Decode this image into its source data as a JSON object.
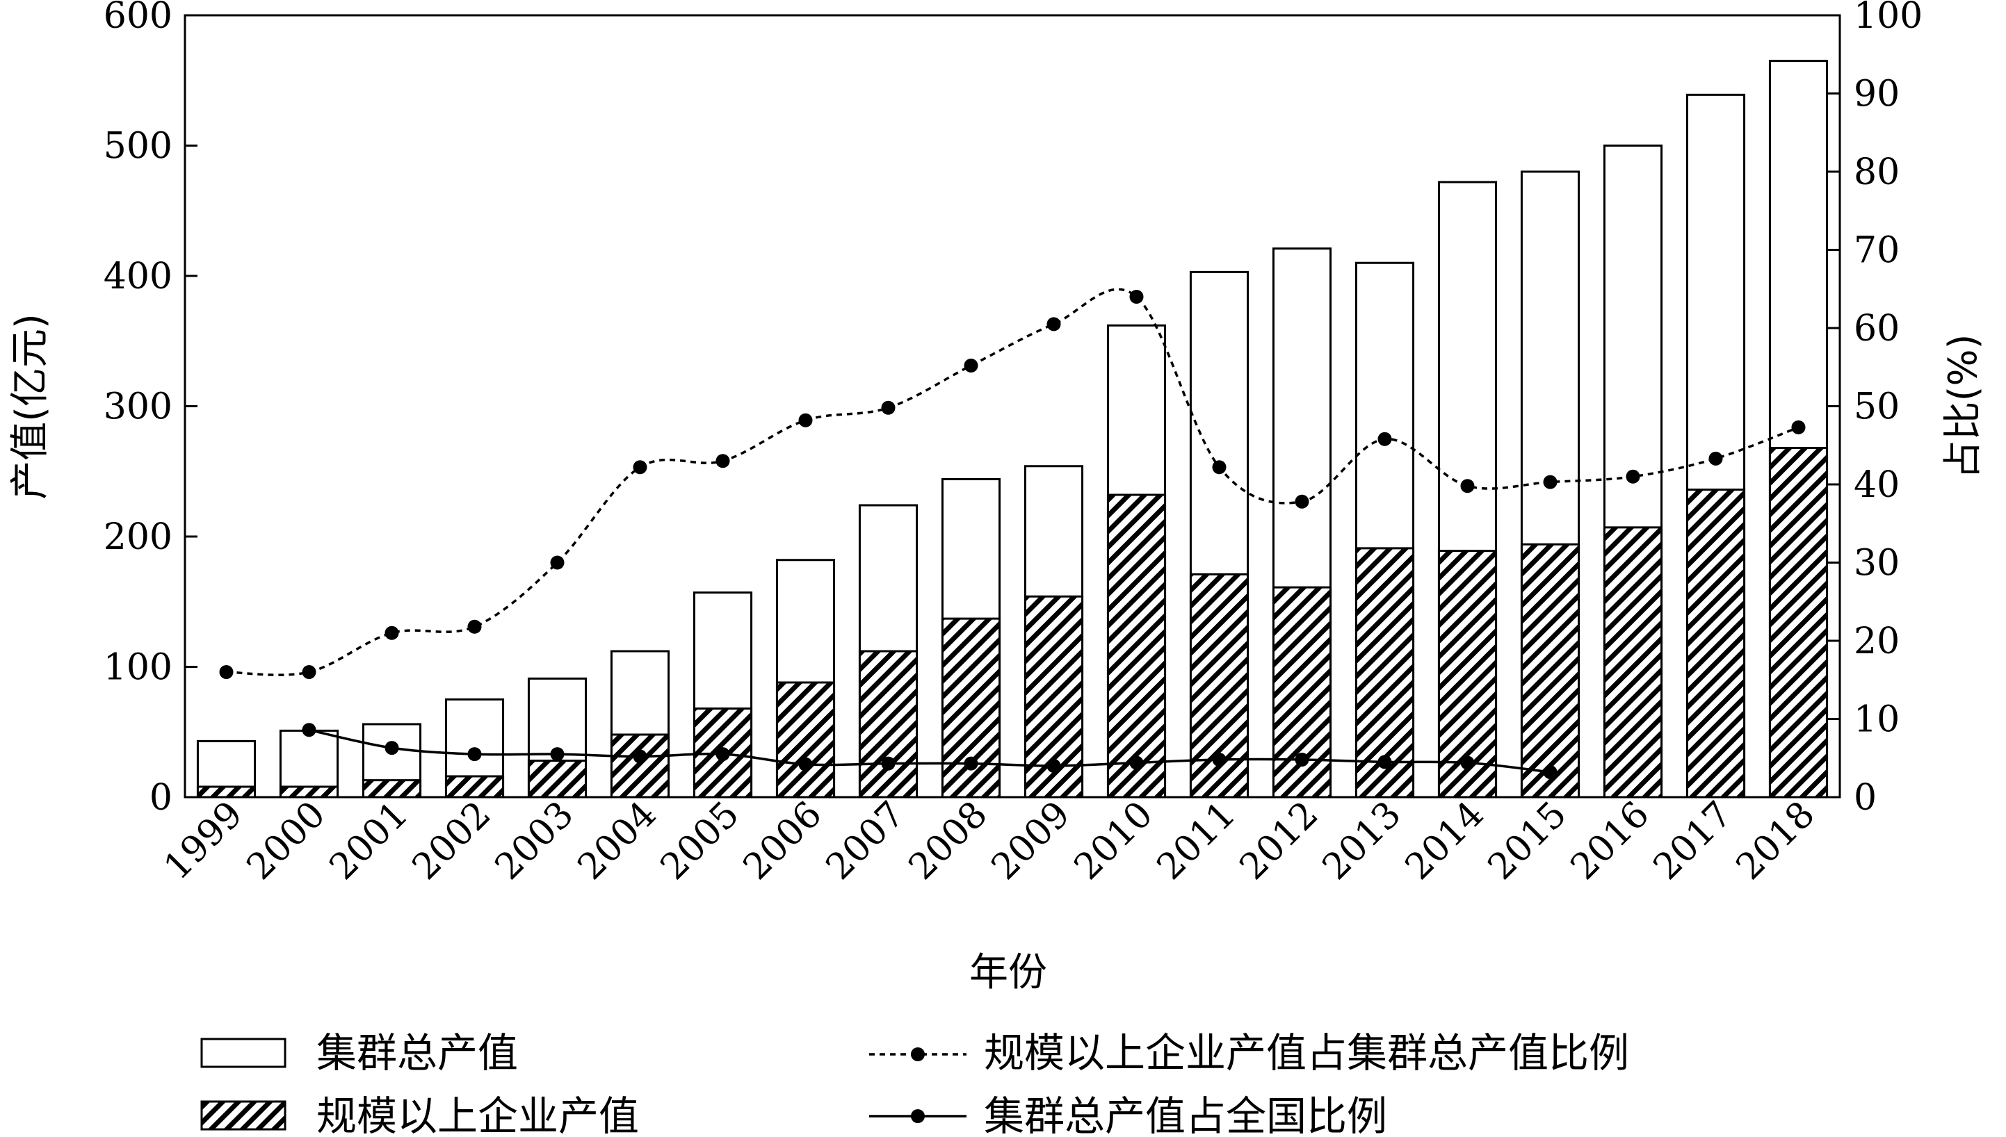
{
  "chart_data": {
    "type": "bar",
    "categories": [
      "1999",
      "2000",
      "2001",
      "2002",
      "2003",
      "2004",
      "2005",
      "2006",
      "2007",
      "2008",
      "2009",
      "2010",
      "2011",
      "2012",
      "2013",
      "2014",
      "2015",
      "2016",
      "2017",
      "2018"
    ],
    "series": [
      {
        "name": "集群总产值",
        "type": "bar",
        "style": "hollow",
        "axis": "left",
        "values": [
          43,
          51,
          56,
          75,
          91,
          112,
          157,
          182,
          224,
          244,
          254,
          362,
          403,
          421,
          410,
          472,
          480,
          500,
          539,
          565
        ]
      },
      {
        "name": "规模以上企业产值",
        "type": "bar",
        "style": "hatched",
        "axis": "left",
        "values": [
          8,
          8,
          13,
          16,
          28,
          48,
          68,
          88,
          112,
          137,
          154,
          232,
          171,
          161,
          191,
          189,
          194,
          207,
          236,
          268
        ]
      },
      {
        "name": "规模以上企业产值占集群总产值比例",
        "type": "line",
        "style": "dotted",
        "axis": "right",
        "values": [
          16,
          16,
          21,
          21.8,
          30,
          42.2,
          43,
          48.2,
          49.8,
          55.2,
          60.5,
          64,
          42.2,
          37.8,
          45.8,
          39.8,
          40.3,
          41,
          43.3,
          47.3
        ]
      },
      {
        "name": "集群总产值占全国比例",
        "type": "line",
        "style": "solid",
        "axis": "right",
        "values": [
          null,
          8.6,
          6.3,
          5.5,
          5.5,
          5.2,
          5.5,
          4.2,
          4.3,
          4.3,
          4.0,
          4.4,
          4.8,
          4.8,
          4.5,
          4.4,
          3.2,
          null,
          null,
          null
        ]
      }
    ],
    "xlabel": "年份",
    "ylabel": "产值(亿元)",
    "ylabel_right": "占比(%)",
    "ylim": [
      0,
      600
    ],
    "ylim_right": [
      0,
      100
    ],
    "yticks": [
      0,
      100,
      200,
      300,
      400,
      500,
      600
    ],
    "yticks_right": [
      0,
      10,
      20,
      30,
      40,
      50,
      60,
      70,
      80,
      90,
      100
    ],
    "grid": false,
    "legend_position": "bottom"
  }
}
